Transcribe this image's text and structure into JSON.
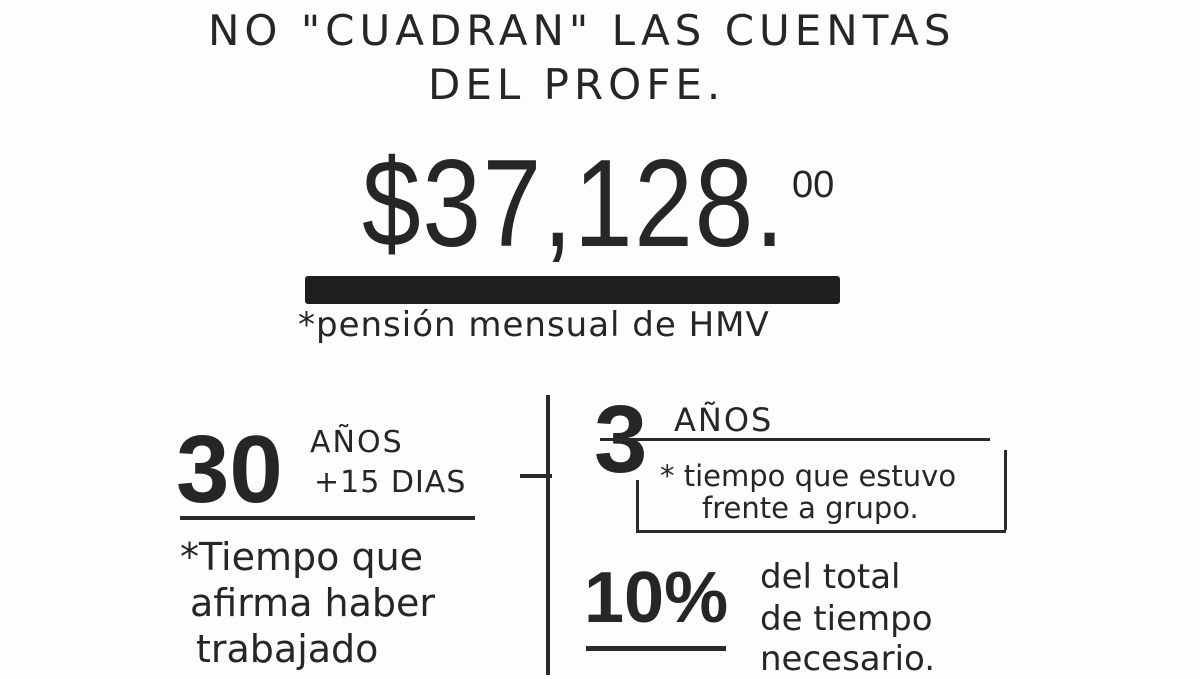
{
  "title": {
    "line1": "NO \"CUADRAN\" LAS CUENTAS",
    "line2": "DEL PROFE."
  },
  "pension": {
    "amount": "$37,128.",
    "cents": "00",
    "caption": "*pensión mensual de HMV"
  },
  "claimed": {
    "number": "30",
    "unit": "AÑOS",
    "extra": "+15 DIAS",
    "note_lines": [
      "*Tiempo que",
      "afirma haber",
      "trabajado"
    ]
  },
  "actual": {
    "number": "3",
    "unit": "AÑOS",
    "note_lines": [
      "* tiempo que estuvo",
      "frente a grupo."
    ]
  },
  "percent": {
    "value": "10%",
    "note_lines": [
      "del total",
      "de tiempo",
      "necesario."
    ]
  },
  "colors": {
    "ink": "#262626",
    "background": "#fdfdfd"
  }
}
